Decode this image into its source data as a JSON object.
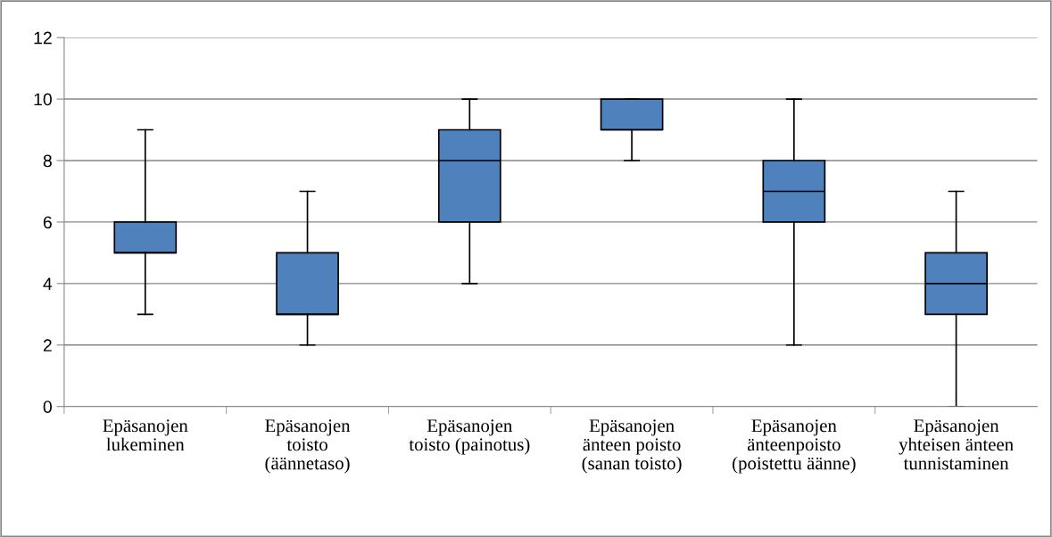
{
  "chart_data": {
    "type": "box",
    "categories": [
      "Epäsanojen\nlukeminen",
      "Epäsanojen\ntoisto\n(äännetaso)",
      "Epäsanojen\ntoisto (painotus)",
      "Epäsanojen\nänteen poisto\n(sanan toisto)",
      "Epäsanojen\nänteenpoisto\n(poistettu äänne)",
      "Epäsanojen\nyhteisen änteen\ntunnistaminen"
    ],
    "boxes": [
      {
        "low": 3,
        "q1": 5,
        "median": 5,
        "q3": 6,
        "high": 9
      },
      {
        "low": 2,
        "q1": 3,
        "median": 3,
        "q3": 5,
        "high": 7
      },
      {
        "low": 4,
        "q1": 6,
        "median": 8,
        "q3": 9,
        "high": 10
      },
      {
        "low": 8,
        "q1": 9,
        "median": 9,
        "q3": 10,
        "high": 10
      },
      {
        "low": 2,
        "q1": 6,
        "median": 7,
        "q3": 8,
        "high": 10
      },
      {
        "low": 0,
        "q1": 3,
        "median": 4,
        "q3": 5,
        "high": 7
      }
    ],
    "color": "#4f81bd",
    "ylim": [
      0,
      12
    ],
    "yticks": [
      0,
      2,
      4,
      6,
      8,
      10,
      12
    ],
    "grid": "y"
  }
}
